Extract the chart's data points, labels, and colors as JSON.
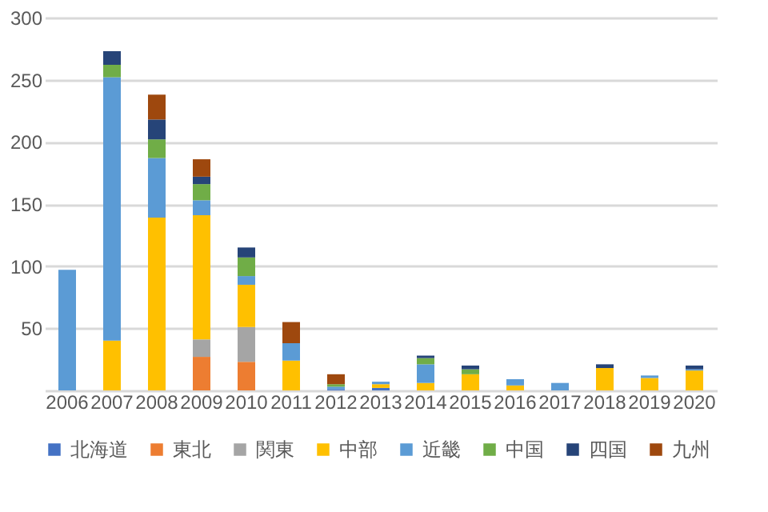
{
  "chart_data": {
    "type": "bar",
    "stacked": true,
    "categories": [
      "2006",
      "2007",
      "2008",
      "2009",
      "2010",
      "2011",
      "2012",
      "2013",
      "2014",
      "2015",
      "2016",
      "2017",
      "2018",
      "2019",
      "2020"
    ],
    "series": [
      {
        "name": "北海道",
        "color": "#4472c4",
        "values": [
          0,
          0,
          0,
          0,
          0,
          0,
          1,
          2,
          0,
          0,
          0,
          0,
          0,
          0,
          0
        ]
      },
      {
        "name": "東北",
        "color": "#ed7d31",
        "values": [
          0,
          0,
          0,
          27,
          23,
          0,
          0,
          0,
          0,
          0,
          0,
          0,
          0,
          0,
          0
        ]
      },
      {
        "name": "関東",
        "color": "#a5a5a5",
        "values": [
          0,
          0,
          0,
          14,
          28,
          0,
          0,
          0,
          0,
          0,
          0,
          0,
          0,
          0,
          0
        ]
      },
      {
        "name": "中部",
        "color": "#ffc000",
        "values": [
          0,
          40,
          139,
          100,
          34,
          24,
          0,
          3,
          6,
          13,
          4,
          0,
          18,
          10,
          16
        ]
      },
      {
        "name": "近畿",
        "color": "#5b9bd5",
        "values": [
          97,
          212,
          48,
          12,
          7,
          14,
          2,
          2,
          15,
          0,
          5,
          6,
          0,
          2,
          1
        ]
      },
      {
        "name": "中国",
        "color": "#70ad47",
        "values": [
          0,
          10,
          15,
          13,
          15,
          0,
          2,
          0,
          5,
          4,
          0,
          0,
          0,
          0,
          0
        ]
      },
      {
        "name": "四国",
        "color": "#264478",
        "values": [
          0,
          11,
          16,
          6,
          8,
          0,
          0,
          0,
          2,
          3,
          0,
          0,
          3,
          0,
          3
        ]
      },
      {
        "name": "九州",
        "color": "#9e480e",
        "values": [
          0,
          0,
          20,
          14,
          0,
          17,
          8,
          0,
          0,
          0,
          0,
          0,
          0,
          0,
          0
        ]
      }
    ],
    "ylim": [
      0,
      300
    ],
    "yticks": [
      {
        "value": 0,
        "label": null
      },
      50,
      100,
      150,
      200,
      250,
      300
    ],
    "grid": "y",
    "legend": "bottom"
  }
}
